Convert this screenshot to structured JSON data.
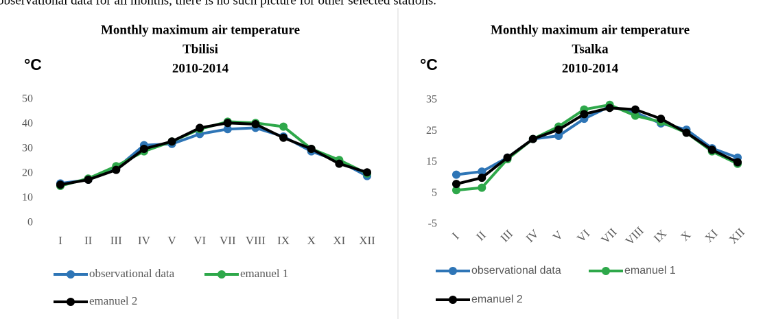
{
  "caption": "observational data for all months, there is no such picture for other selected stations.",
  "chart_data": [
    {
      "type": "line",
      "title": [
        "Monthly maximum air temperature",
        "Tbilisi",
        "2010-2014"
      ],
      "ylabel": "°C",
      "categories": [
        "I",
        "II",
        "III",
        "IV",
        "V",
        "VI",
        "VII",
        "VIII",
        "IX",
        "X",
        "XI",
        "XII"
      ],
      "ylim": [
        0,
        50
      ],
      "yticks": [
        0,
        10,
        20,
        30,
        40,
        50
      ],
      "grid": false,
      "rotate_labels": false,
      "series": [
        {
          "name": "observational data",
          "color": "#2e75b6",
          "values": [
            16,
            17.5,
            22,
            31.5,
            32,
            36,
            38,
            38.5,
            35,
            29,
            25,
            19
          ]
        },
        {
          "name": "emanuel 1",
          "color": "#2ea84a",
          "values": [
            15,
            18,
            23,
            29,
            33,
            38,
            41,
            40.5,
            39,
            30,
            25.5,
            20
          ]
        },
        {
          "name": "emanuel 2",
          "color": "#000000",
          "values": [
            15.5,
            17.5,
            21.5,
            30,
            33,
            38.5,
            40.5,
            40,
            34.5,
            30,
            24,
            20.5
          ]
        }
      ]
    },
    {
      "type": "line",
      "title": [
        "Monthly maximum air temperature",
        "Tsalka",
        "2010-2014"
      ],
      "ylabel": "°C",
      "categories": [
        "I",
        "II",
        "III",
        "IV",
        "V",
        "VI",
        "VII",
        "VIII",
        "IX",
        "X",
        "XI",
        "XII"
      ],
      "ylim": [
        -5,
        35
      ],
      "yticks": [
        -5,
        5,
        15,
        25,
        35
      ],
      "grid": false,
      "rotate_labels": true,
      "series": [
        {
          "name": "observational data",
          "color": "#2e75b6",
          "values": [
            11,
            12,
            16.5,
            22.5,
            23.5,
            29,
            33,
            31,
            27.5,
            25.5,
            19.5,
            16.5
          ]
        },
        {
          "name": "emanuel 1",
          "color": "#2ea84a",
          "values": [
            6,
            6.8,
            16,
            22.5,
            26.5,
            32,
            33.5,
            30,
            28,
            24.5,
            18.5,
            14.5
          ]
        },
        {
          "name": "emanuel 2",
          "color": "#000000",
          "values": [
            8,
            10,
            16.5,
            22.5,
            25.5,
            30.5,
            32.5,
            32,
            29,
            24.5,
            19,
            15
          ]
        }
      ]
    }
  ]
}
